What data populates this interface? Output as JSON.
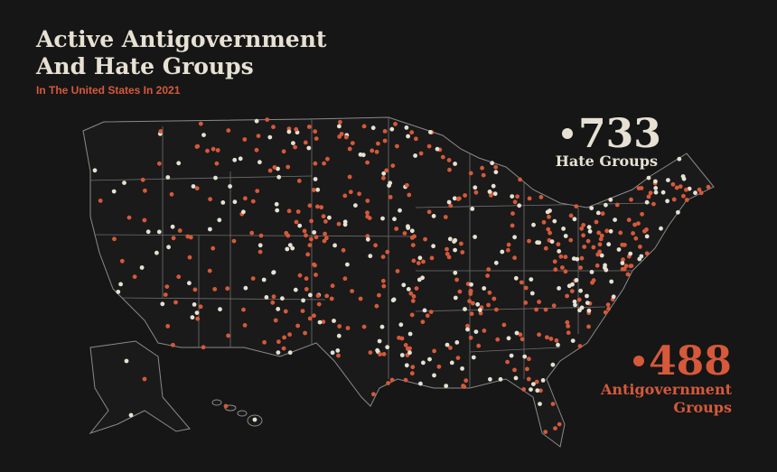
{
  "header": {
    "title_line1": "Active Antigovernment",
    "title_line2": "And Hate Groups",
    "subtitle": "In The United States In 2021"
  },
  "stats": {
    "hate": {
      "count": 733,
      "label": "Hate Groups"
    },
    "antigovernment": {
      "count": 488,
      "label_line1": "Antigovernment",
      "label_line2": "Groups"
    }
  }
}
